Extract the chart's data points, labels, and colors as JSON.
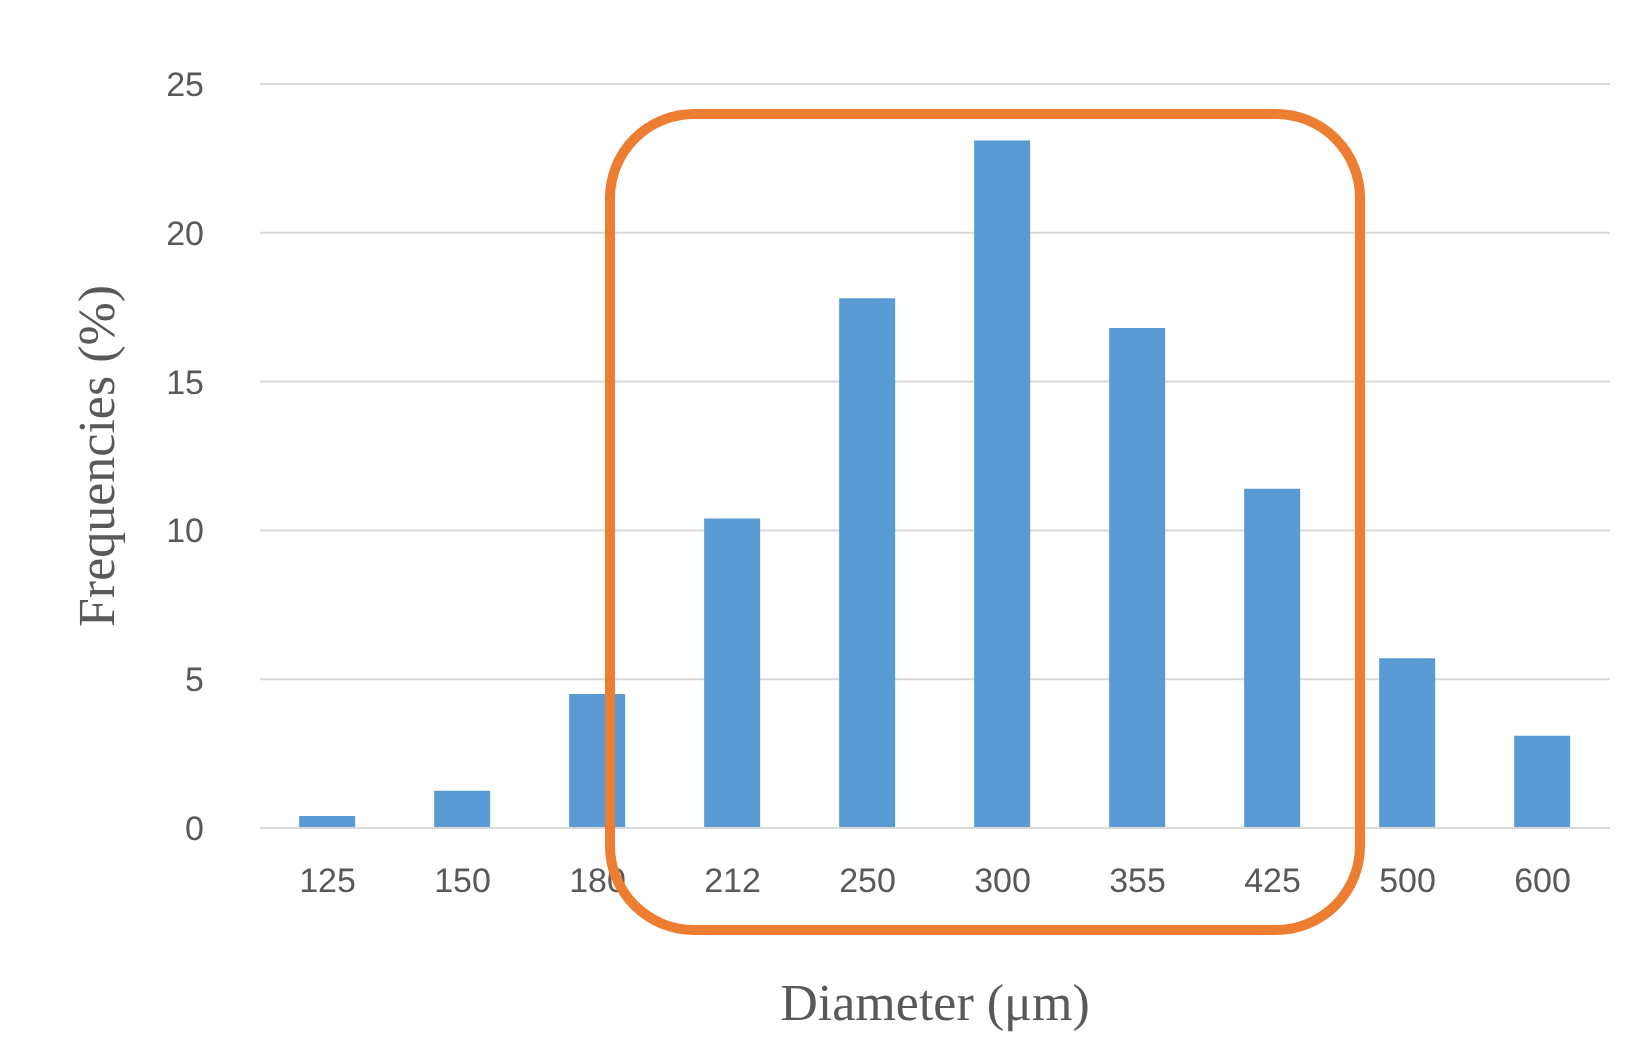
{
  "chart_data": {
    "type": "bar",
    "xlabel": "Diameter (μm)",
    "ylabel": "Frequencies (%)",
    "categories": [
      "125",
      "150",
      "180",
      "212",
      "250",
      "300",
      "355",
      "425",
      "500",
      "600"
    ],
    "values": [
      0.4,
      1.25,
      4.5,
      10.4,
      17.8,
      23.1,
      16.8,
      11.4,
      5.7,
      3.1
    ],
    "color": "#5b9bd5",
    "ylim": [
      0,
      25
    ],
    "yticks": [
      0,
      5,
      10,
      15,
      20,
      25
    ],
    "grid": "y"
  }
}
